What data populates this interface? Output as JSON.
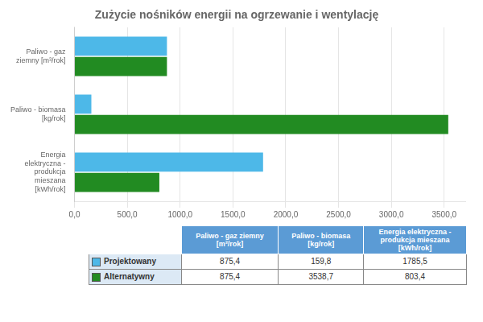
{
  "chart_data": {
    "type": "bar",
    "orientation": "horizontal",
    "title": "Zużycie nośników energii na ogrzewanie i wentylację",
    "categories": [
      "Paliwo - gaz\nziemny [m³/rok]",
      "Paliwo - biomasa\n[kg/rok]",
      "Energia\nelektryczna -\nprodukcja\nmieszana\n[kWh/rok]"
    ],
    "series": [
      {
        "name": "Projektowany",
        "color": "#4db8e8",
        "values": [
          875.4,
          159.8,
          1785.5
        ],
        "value_labels": [
          "875,4",
          "159,8",
          "1785,5"
        ]
      },
      {
        "name": "Alternatywny",
        "color": "#228B22",
        "values": [
          875.4,
          3538.7,
          803.4
        ],
        "value_labels": [
          "875,4",
          "3538,7",
          "803,4"
        ]
      }
    ],
    "xlim": [
      0,
      3700
    ],
    "xticks": [
      {
        "value": 0,
        "label": "0,0"
      },
      {
        "value": 500,
        "label": "500,0"
      },
      {
        "value": 1000,
        "label": "1000,0"
      },
      {
        "value": 1500,
        "label": "1500,0"
      },
      {
        "value": 2000,
        "label": "2000,0"
      },
      {
        "value": 2500,
        "label": "2500,0"
      },
      {
        "value": 3000,
        "label": "3000,0"
      },
      {
        "value": 3500,
        "label": "3500,0"
      }
    ],
    "grid": true,
    "table": {
      "columns": [
        "Paliwo - gaz ziemny\n[m³/rok]",
        "Paliwo - biomasa\n[kg/rok]",
        "Energia elektryczna -\nprodukcja mieszana\n[kWh/rok]"
      ],
      "header_color": "#5b9bd5"
    }
  }
}
